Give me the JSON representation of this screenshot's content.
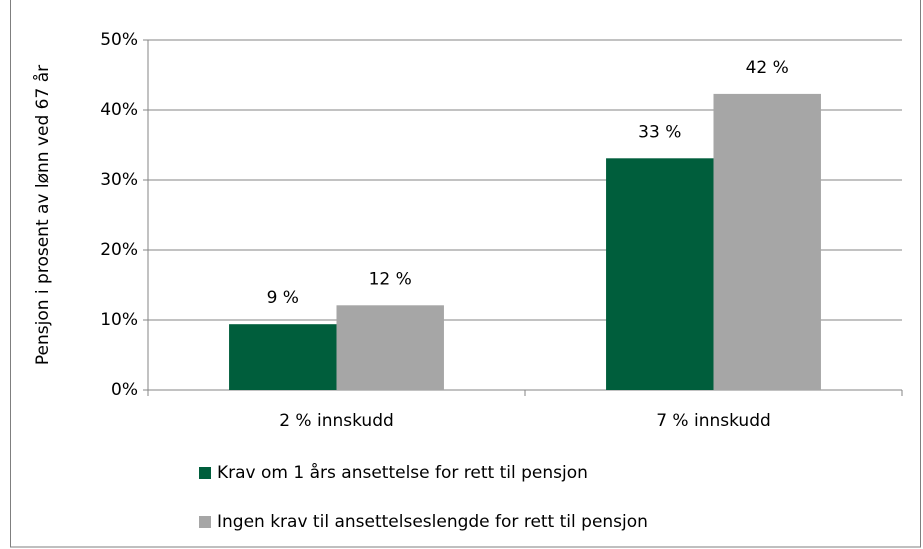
{
  "chart_data": {
    "type": "bar",
    "ylabel": "Pensjon i prosent av lønn ved 67 år",
    "categories": [
      "2 % innskudd",
      "7 % innskudd"
    ],
    "series": [
      {
        "name": "Krav om 1 års ansettelse for rett til pensjon",
        "color": "#005e3c",
        "values": [
          9.4,
          33.1
        ],
        "value_labels": [
          "9 %",
          "33 %"
        ]
      },
      {
        "name": "Ingen krav til ansettelseslengde for rett til pensjon",
        "color": "#a6a6a6",
        "values": [
          12.1,
          42.3
        ],
        "value_labels": [
          "12 %",
          "42 %"
        ]
      }
    ],
    "ylim": [
      0,
      50
    ],
    "yticks": [
      {
        "value": 0,
        "label": "0%"
      },
      {
        "value": 10,
        "label": "10%"
      },
      {
        "value": 20,
        "label": "20%"
      },
      {
        "value": 30,
        "label": "30%"
      },
      {
        "value": 40,
        "label": "40%"
      },
      {
        "value": 50,
        "label": "50%"
      }
    ],
    "grid": true,
    "legend": "bottom"
  }
}
